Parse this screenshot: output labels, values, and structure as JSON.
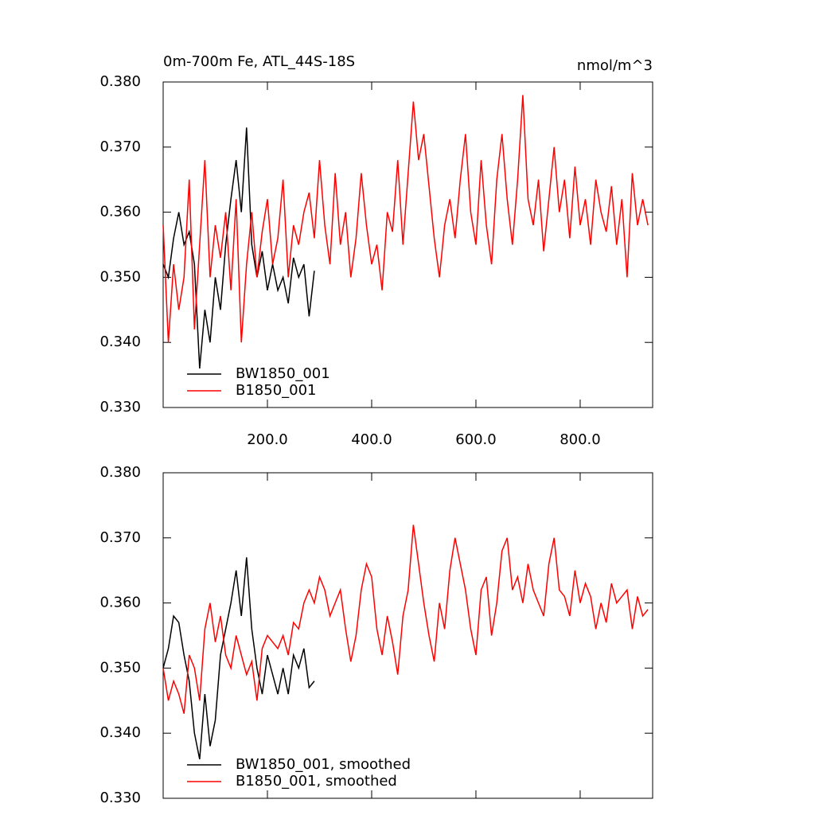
{
  "chart_data": [
    {
      "type": "line",
      "title": "0m-700m Fe, ATL_44S-18S",
      "units": "nmol/m^3",
      "x": [
        0,
        10,
        20,
        30,
        40,
        50,
        60,
        70,
        80,
        90,
        100,
        110,
        120,
        130,
        140,
        150,
        160,
        170,
        180,
        190,
        200,
        210,
        220,
        230,
        240,
        250,
        260,
        270,
        280,
        290,
        300,
        310,
        320,
        330,
        340,
        350,
        360,
        370,
        380,
        390,
        400,
        410,
        420,
        430,
        440,
        450,
        460,
        470,
        480,
        490,
        500,
        510,
        520,
        530,
        540,
        550,
        560,
        570,
        580,
        590,
        600,
        610,
        620,
        630,
        640,
        650,
        660,
        670,
        680,
        690,
        700,
        710,
        720,
        730,
        740,
        750,
        760,
        770,
        780,
        790,
        800,
        810,
        820,
        830,
        840,
        850,
        860,
        870,
        880,
        890,
        900,
        910,
        920,
        930
      ],
      "series": [
        {
          "name": "BW1850_001",
          "color": "#000000",
          "values": [
            0.352,
            0.35,
            0.356,
            0.36,
            0.355,
            0.357,
            0.352,
            0.336,
            0.345,
            0.34,
            0.35,
            0.345,
            0.355,
            0.362,
            0.368,
            0.36,
            0.373,
            0.355,
            0.35,
            0.354,
            0.348,
            0.352,
            0.348,
            0.35,
            0.346,
            0.353,
            0.35,
            0.352,
            0.344,
            0.351,
            null,
            null,
            null,
            null,
            null,
            null,
            null,
            null,
            null,
            null,
            null,
            null,
            null,
            null,
            null,
            null,
            null,
            null,
            null,
            null,
            null,
            null,
            null,
            null,
            null,
            null,
            null,
            null,
            null,
            null,
            null,
            null,
            null,
            null,
            null,
            null,
            null,
            null,
            null,
            null,
            null,
            null,
            null,
            null,
            null,
            null,
            null,
            null,
            null,
            null,
            null,
            null,
            null,
            null,
            null,
            null,
            null,
            null,
            null,
            null,
            null,
            null,
            null,
            null
          ]
        },
        {
          "name": "B1850_001",
          "color": "#ff0000",
          "values": [
            0.358,
            0.34,
            0.352,
            0.345,
            0.35,
            0.365,
            0.342,
            0.355,
            0.368,
            0.35,
            0.358,
            0.353,
            0.36,
            0.348,
            0.362,
            0.34,
            0.352,
            0.36,
            0.35,
            0.357,
            0.362,
            0.352,
            0.356,
            0.365,
            0.35,
            0.358,
            0.355,
            0.36,
            0.363,
            0.356,
            0.368,
            0.358,
            0.352,
            0.366,
            0.355,
            0.36,
            0.35,
            0.356,
            0.366,
            0.358,
            0.352,
            0.355,
            0.348,
            0.36,
            0.357,
            0.368,
            0.355,
            0.366,
            0.377,
            0.368,
            0.372,
            0.364,
            0.356,
            0.35,
            0.358,
            0.362,
            0.356,
            0.365,
            0.372,
            0.36,
            0.355,
            0.368,
            0.358,
            0.352,
            0.365,
            0.372,
            0.362,
            0.355,
            0.365,
            0.378,
            0.362,
            0.358,
            0.365,
            0.354,
            0.362,
            0.37,
            0.36,
            0.365,
            0.356,
            0.367,
            0.358,
            0.362,
            0.355,
            0.365,
            0.36,
            0.357,
            0.364,
            0.355,
            0.362,
            0.35,
            0.366,
            0.358,
            0.362,
            0.358
          ]
        }
      ],
      "xlim": [
        0,
        939
      ],
      "ylim": [
        0.33,
        0.38
      ],
      "xticks": [
        {
          "value": 200,
          "label": "200.0"
        },
        {
          "value": 400,
          "label": "400.0"
        },
        {
          "value": 600,
          "label": "600.0"
        },
        {
          "value": 800,
          "label": "800.0"
        }
      ],
      "yticks": [
        {
          "value": 0.33,
          "label": "0.330"
        },
        {
          "value": 0.34,
          "label": "0.340"
        },
        {
          "value": 0.35,
          "label": "0.350"
        },
        {
          "value": 0.36,
          "label": "0.360"
        },
        {
          "value": 0.37,
          "label": "0.370"
        },
        {
          "value": 0.38,
          "label": "0.380"
        }
      ],
      "legend": "lower left"
    },
    {
      "type": "line",
      "x": [
        0,
        10,
        20,
        30,
        40,
        50,
        60,
        70,
        80,
        90,
        100,
        110,
        120,
        130,
        140,
        150,
        160,
        170,
        180,
        190,
        200,
        210,
        220,
        230,
        240,
        250,
        260,
        270,
        280,
        290,
        300,
        310,
        320,
        330,
        340,
        350,
        360,
        370,
        380,
        390,
        400,
        410,
        420,
        430,
        440,
        450,
        460,
        470,
        480,
        490,
        500,
        510,
        520,
        530,
        540,
        550,
        560,
        570,
        580,
        590,
        600,
        610,
        620,
        630,
        640,
        650,
        660,
        670,
        680,
        690,
        700,
        710,
        720,
        730,
        740,
        750,
        760,
        770,
        780,
        790,
        800,
        810,
        820,
        830,
        840,
        850,
        860,
        870,
        880,
        890,
        900,
        910,
        920,
        930
      ],
      "series": [
        {
          "name": "BW1850_001, smoothed",
          "color": "#000000",
          "values": [
            0.35,
            0.353,
            0.358,
            0.357,
            0.352,
            0.348,
            0.34,
            0.336,
            0.346,
            0.338,
            0.342,
            0.352,
            0.356,
            0.36,
            0.365,
            0.358,
            0.367,
            0.356,
            0.35,
            0.346,
            0.352,
            0.349,
            0.346,
            0.35,
            0.346,
            0.352,
            0.35,
            0.353,
            0.347,
            0.348,
            null,
            null,
            null,
            null,
            null,
            null,
            null,
            null,
            null,
            null,
            null,
            null,
            null,
            null,
            null,
            null,
            null,
            null,
            null,
            null,
            null,
            null,
            null,
            null,
            null,
            null,
            null,
            null,
            null,
            null,
            null,
            null,
            null,
            null,
            null,
            null,
            null,
            null,
            null,
            null,
            null,
            null,
            null,
            null,
            null,
            null,
            null,
            null,
            null,
            null,
            null,
            null,
            null,
            null,
            null,
            null,
            null,
            null,
            null,
            null,
            null,
            null,
            null,
            null
          ]
        },
        {
          "name": "B1850_001, smoothed",
          "color": "#ff0000",
          "values": [
            0.35,
            0.345,
            0.348,
            0.346,
            0.343,
            0.352,
            0.35,
            0.345,
            0.356,
            0.36,
            0.354,
            0.358,
            0.352,
            0.35,
            0.355,
            0.352,
            0.349,
            0.351,
            0.345,
            0.353,
            0.355,
            0.354,
            0.353,
            0.355,
            0.352,
            0.357,
            0.356,
            0.36,
            0.362,
            0.36,
            0.364,
            0.362,
            0.358,
            0.36,
            0.362,
            0.356,
            0.351,
            0.355,
            0.362,
            0.366,
            0.364,
            0.356,
            0.352,
            0.358,
            0.354,
            0.349,
            0.358,
            0.362,
            0.372,
            0.366,
            0.36,
            0.355,
            0.351,
            0.36,
            0.356,
            0.365,
            0.37,
            0.366,
            0.362,
            0.356,
            0.352,
            0.362,
            0.364,
            0.355,
            0.36,
            0.368,
            0.37,
            0.362,
            0.364,
            0.36,
            0.366,
            0.362,
            0.36,
            0.358,
            0.366,
            0.37,
            0.362,
            0.361,
            0.358,
            0.365,
            0.36,
            0.363,
            0.361,
            0.356,
            0.36,
            0.357,
            0.363,
            0.36,
            0.361,
            0.362,
            0.356,
            0.361,
            0.358,
            0.359
          ]
        }
      ],
      "xlim": [
        0,
        939
      ],
      "ylim": [
        0.33,
        0.38
      ],
      "xticks": [
        200,
        400,
        600,
        800
      ],
      "yticks": [
        {
          "value": 0.33,
          "label": "0.330"
        },
        {
          "value": 0.34,
          "label": "0.340"
        },
        {
          "value": 0.35,
          "label": "0.350"
        },
        {
          "value": 0.36,
          "label": "0.360"
        },
        {
          "value": 0.37,
          "label": "0.370"
        },
        {
          "value": 0.38,
          "label": "0.380"
        }
      ],
      "legend": "lower left"
    }
  ]
}
